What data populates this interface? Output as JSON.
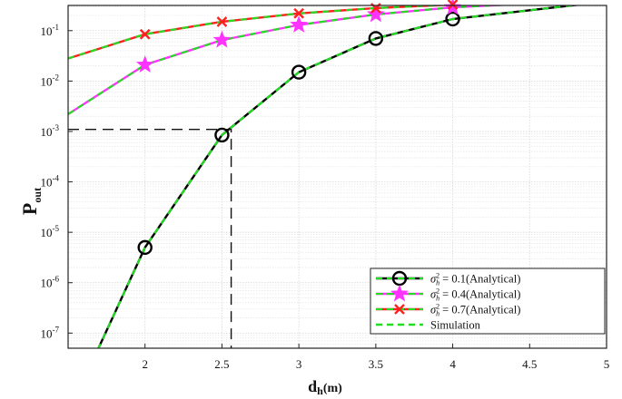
{
  "chart_data": {
    "type": "line",
    "xlabel": "d",
    "xlabel_sub": "h",
    "xlabel_unit": "(m)",
    "ylabel": "P",
    "ylabel_sub": "out",
    "xlim": [
      1.5,
      5
    ],
    "ylim_log10": [
      -7.3,
      -0.5
    ],
    "yscale": "log",
    "grid": true,
    "legend_position": "bottom-right",
    "x_ticks": [
      2,
      2.5,
      3,
      3.5,
      4,
      4.5,
      5
    ],
    "x_tick_labels": [
      "2",
      "2.5",
      "3",
      "3.5",
      "4",
      "4.5",
      "5"
    ],
    "y_ticks": [
      {
        "exp": -7,
        "base": "10",
        "sup": "-7"
      },
      {
        "exp": -6,
        "base": "10",
        "sup": "-6"
      },
      {
        "exp": -5,
        "base": "10",
        "sup": "-5"
      },
      {
        "exp": -4,
        "base": "10",
        "sup": "-4"
      },
      {
        "exp": -3,
        "base": "10",
        "sup": "-3"
      },
      {
        "exp": -2,
        "base": "10",
        "sup": "-2"
      },
      {
        "exp": -1,
        "base": "10",
        "sup": "-1"
      }
    ],
    "x": [
      1.5,
      2,
      2.5,
      3,
      3.5,
      4,
      5
    ],
    "series": [
      {
        "name": "= 0.1(Analytical)",
        "sigma_label": "σ",
        "sigma_sup": "2",
        "sigma_sub": "h",
        "color": "#000000",
        "marker": "circle",
        "values": [
          2.5e-09,
          5e-06,
          0.00085,
          0.015,
          0.07,
          0.17,
          0.38
        ]
      },
      {
        "name": "= 0.4(Analytical)",
        "sigma_label": "σ",
        "sigma_sup": "2",
        "sigma_sub": "h",
        "color": "#ff33ff",
        "marker": "star",
        "values": [
          0.0022,
          0.021,
          0.065,
          0.13,
          0.21,
          0.29,
          0.41
        ]
      },
      {
        "name": "= 0.7(Analytical)",
        "sigma_label": "σ",
        "sigma_sup": "2",
        "sigma_sub": "h",
        "color": "#ff2020",
        "marker": "x",
        "values": [
          0.028,
          0.085,
          0.15,
          0.22,
          0.28,
          0.33,
          0.43
        ]
      },
      {
        "name": "Simulation",
        "color": "#22dd22",
        "marker": "none",
        "dashed": true,
        "overlays": [
          0,
          1,
          2
        ]
      }
    ],
    "reference_lines": {
      "x": 2.56,
      "y": 0.0011
    }
  }
}
